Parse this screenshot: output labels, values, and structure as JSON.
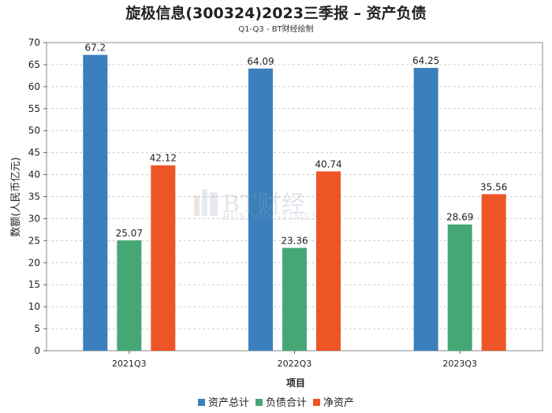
{
  "chart_data": {
    "type": "bar",
    "title": "旋极信息(300324)2023三季报 – 资产负债",
    "subtitle": "Q1-Q3 - BT财经绘制",
    "xlabel": "项目",
    "ylabel": "数额(人民币亿元)",
    "categories": [
      "2021Q3",
      "2022Q3",
      "2023Q3"
    ],
    "ylim": [
      0,
      70
    ],
    "yticks": [
      0,
      5,
      10,
      15,
      20,
      25,
      30,
      35,
      40,
      45,
      50,
      55,
      60,
      65,
      70
    ],
    "grid": true,
    "legend_position": "bottom",
    "series": [
      {
        "name": "资产总计",
        "color": "#3b7fbd",
        "values": [
          67.2,
          64.09,
          64.25
        ],
        "labels": [
          "67.2",
          "64.09",
          "64.25"
        ]
      },
      {
        "name": "负债合计",
        "color": "#45a874",
        "values": [
          25.07,
          23.36,
          28.69
        ],
        "labels": [
          "25.07",
          "23.36",
          "28.69"
        ]
      },
      {
        "name": "净资产",
        "color": "#ee5526",
        "values": [
          42.12,
          40.74,
          35.56
        ],
        "labels": [
          "42.12",
          "40.74",
          "35.56"
        ]
      }
    ]
  },
  "watermark": {
    "main": "BT财经",
    "sub": "BUSINESSTIMES"
  }
}
